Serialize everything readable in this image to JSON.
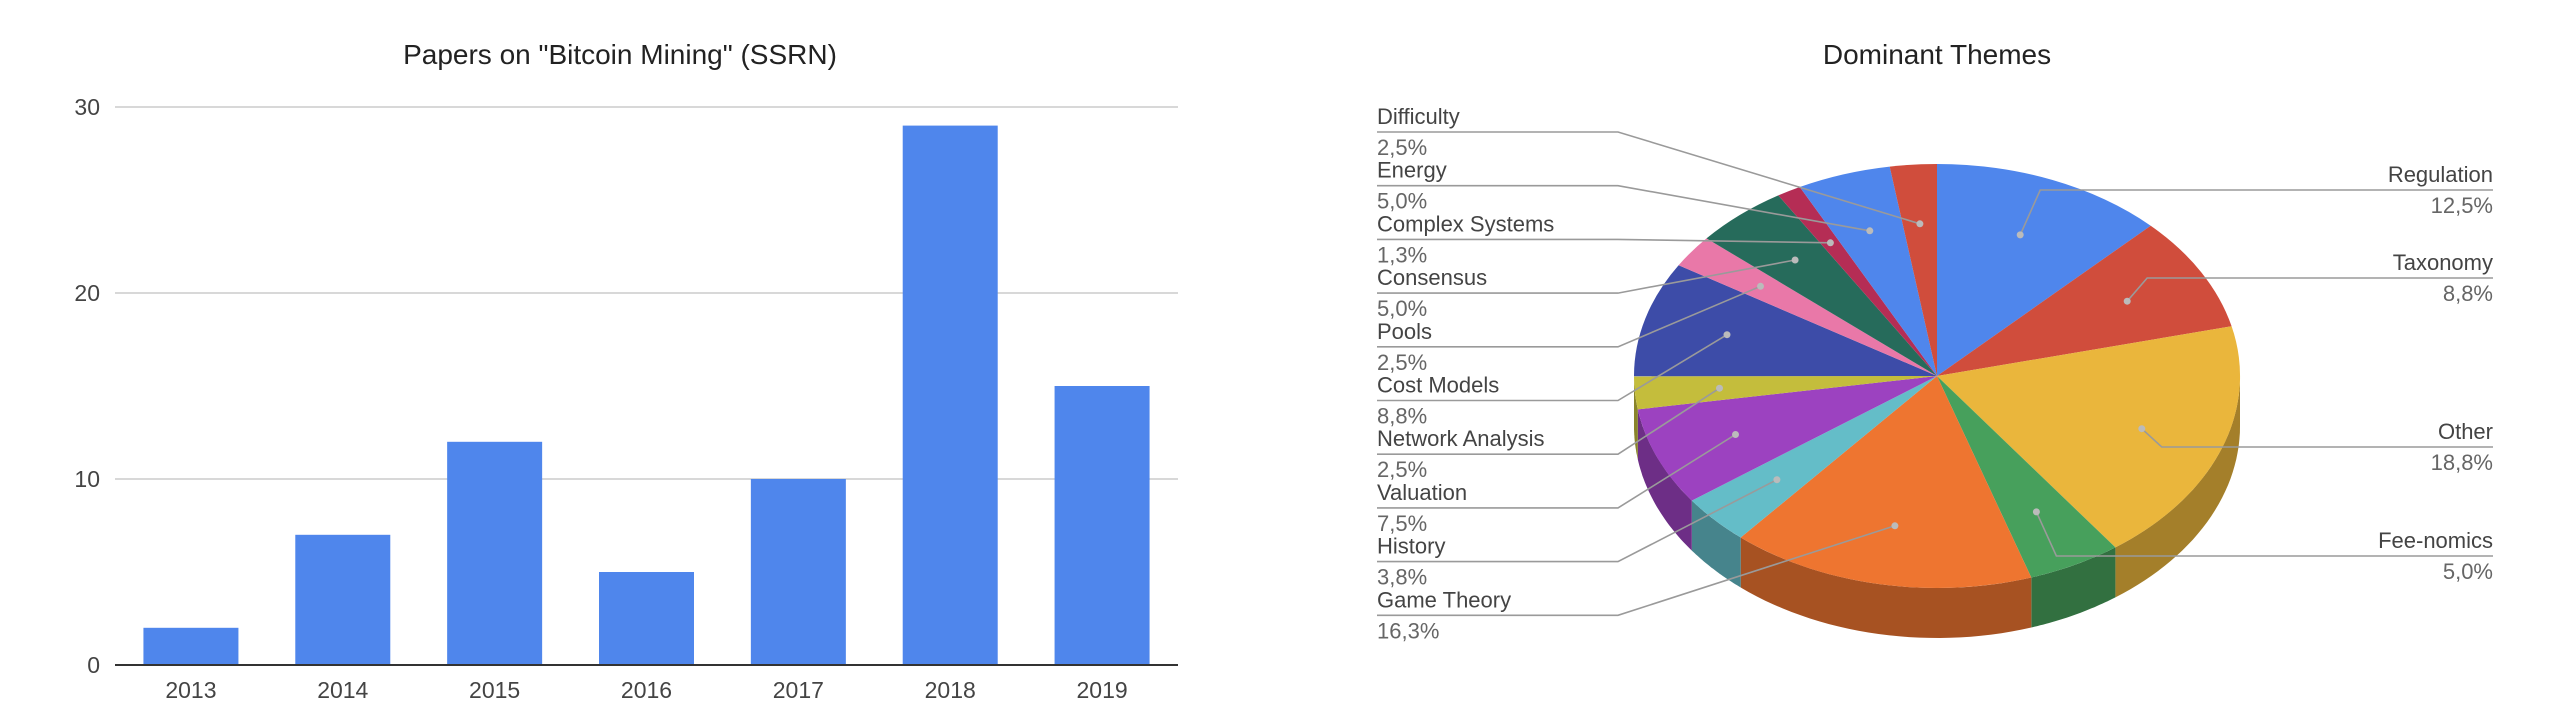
{
  "chart_data": [
    {
      "type": "bar",
      "title": "Papers on \"Bitcoin Mining\" (SSRN)",
      "categories": [
        "2013",
        "2014",
        "2015",
        "2016",
        "2017",
        "2018",
        "2019"
      ],
      "values": [
        2,
        7,
        12,
        5,
        10,
        29,
        15
      ],
      "ylim": [
        0,
        30
      ],
      "yticks": [
        "0",
        "10",
        "20",
        "30"
      ],
      "grid": true,
      "legend": "none",
      "color": "#4f86ec"
    },
    {
      "type": "pie",
      "style": "3d",
      "title": "Dominant Themes",
      "legend": "labels beside slices",
      "slices": [
        {
          "label": "Regulation",
          "pct_label": "12,5%",
          "value": 12.5,
          "color": "#4f86ec"
        },
        {
          "label": "Taxonomy",
          "pct_label": "8,8%",
          "value": 8.8,
          "color": "#d04d3c"
        },
        {
          "label": "Other",
          "pct_label": "18,8%",
          "value": 18.8,
          "color": "#eab63c"
        },
        {
          "label": "Fee-nomics",
          "pct_label": "5,0%",
          "value": 5.0,
          "color": "#47a05c"
        },
        {
          "label": "Game Theory",
          "pct_label": "16,3%",
          "value": 16.3,
          "color": "#ee7530"
        },
        {
          "label": "History",
          "pct_label": "3,8%",
          "value": 3.8,
          "color": "#64bdc8"
        },
        {
          "label": "Valuation",
          "pct_label": "7,5%",
          "value": 7.5,
          "color": "#9c42c0"
        },
        {
          "label": "Network Analysis",
          "pct_label": "2,5%",
          "value": 2.5,
          "color": "#c4bd3c"
        },
        {
          "label": "Cost Models",
          "pct_label": "8,8%",
          "value": 8.8,
          "color": "#3d4ca8"
        },
        {
          "label": "Pools",
          "pct_label": "2,5%",
          "value": 2.5,
          "color": "#e978a8"
        },
        {
          "label": "Consensus",
          "pct_label": "5,0%",
          "value": 5.0,
          "color": "#266b5b"
        },
        {
          "label": "Complex Systems",
          "pct_label": "1,3%",
          "value": 1.3,
          "color": "#b52d55"
        },
        {
          "label": "Energy",
          "pct_label": "5,0%",
          "value": 5.0,
          "color": "#4f86ec"
        },
        {
          "label": "Difficulty",
          "pct_label": "2,5%",
          "value": 2.5,
          "color": "#d04d3c"
        }
      ]
    }
  ]
}
